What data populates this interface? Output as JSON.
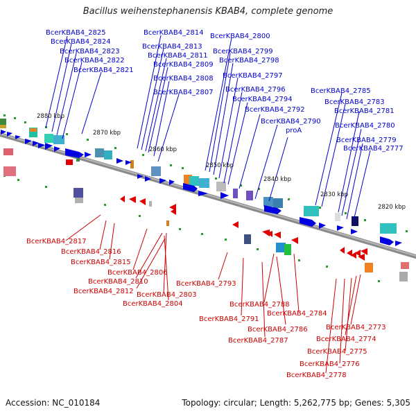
{
  "title": "Bacillus weihenstephanensis KBAB4, complete genome",
  "accession": "Accession: NC_010184",
  "summary": "Topology: circular; Length: 5,262,775 bp; Genes: 5,305",
  "colors": {
    "forward": "#0000dd",
    "reverse": "#dd0000",
    "backbone": "#888888",
    "ticks": "#22aa22"
  },
  "ruler": [
    "2880 kbp",
    "2870 kbp",
    "2860 kbp",
    "2850 kbp",
    "2840 kbp",
    "2830 kbp",
    "2820 kbp"
  ],
  "top_labels": [
    "BcerKBAB4_2825",
    "BcerKBAB4_2824",
    "BcerKBAB4_2823",
    "BcerKBAB4_2822",
    "BcerKBAB4_2821",
    "BcerKBAB4_2814",
    "BcerKBAB4_2813",
    "BcerKBAB4_2811",
    "BcerKBAB4_2809",
    "BcerKBAB4_2808",
    "BcerKBAB4_2807",
    "BcerKBAB4_2800",
    "BcerKBAB4_2799",
    "BcerKBAB4_2798",
    "BcerKBAB4_2797",
    "BcerKBAB4_2796",
    "BcerKBAB4_2794",
    "BcerKBAB4_2792",
    "BcerKBAB4_2790",
    "proA",
    "BcerKBAB4_2785",
    "BcerKBAB4_2783",
    "BcerKBAB4_2781",
    "BcerKBAB4_2780",
    "BcerKBAB4_2779",
    "BcerKBAB4_2777"
  ],
  "bottom_labels": [
    "BcerKBAB4_2817",
    "BcerKBAB4_2816",
    "BcerKBAB4_2815",
    "BcerKBAB4_2806",
    "BcerKBAB4_2810",
    "BcerKBAB4_2812",
    "BcerKBAB4_2803",
    "BcerKBAB4_2804",
    "BcerKBAB4_2793",
    "BcerKBAB4_2788",
    "BcerKBAB4_2784",
    "BcerKBAB4_2791",
    "BcerKBAB4_2786",
    "BcerKBAB4_2787",
    "BcerKBAB4_2773",
    "BcerKBAB4_2774",
    "BcerKBAB4_2775",
    "BcerKBAB4_2776",
    "BcerKBAB4_2778"
  ]
}
